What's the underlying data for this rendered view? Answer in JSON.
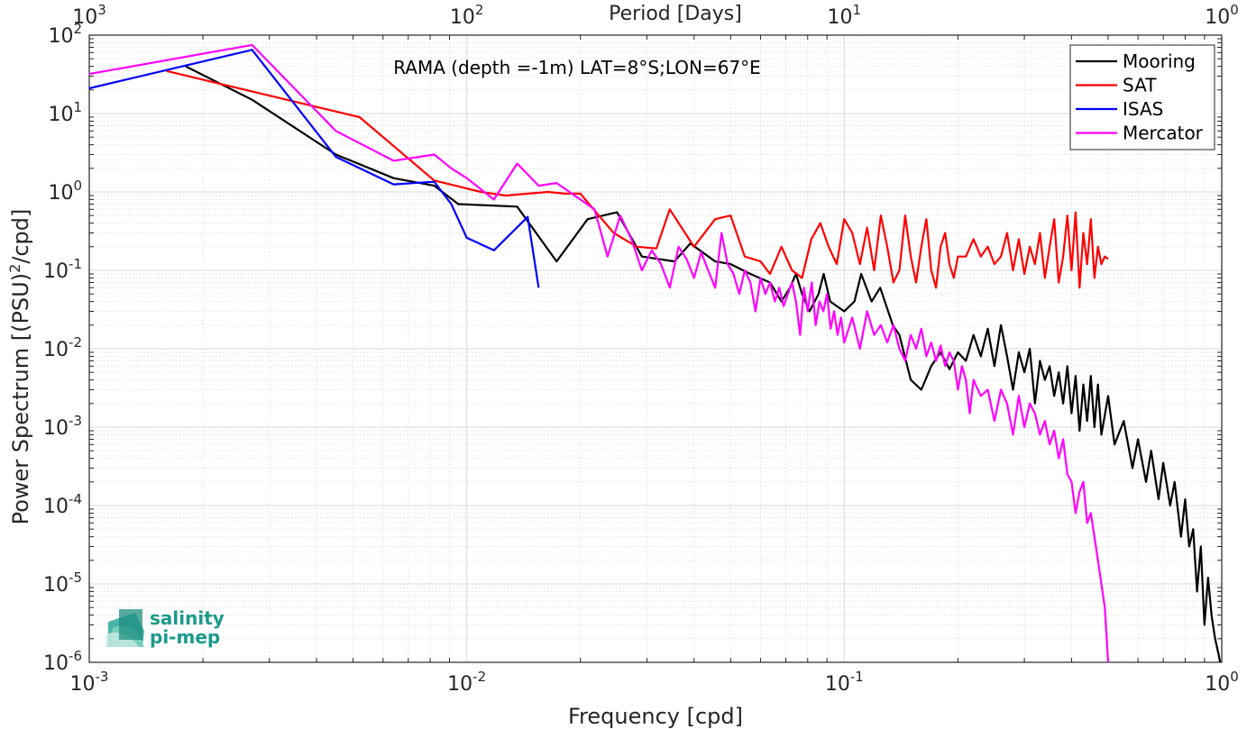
{
  "chart_data": {
    "type": "line",
    "title": "",
    "annotation": "RAMA (depth =-1m) LAT=8°S;LON=67°E",
    "xlabel": "Frequency [cpd]",
    "ylabel": "Power Spectrum [(PSU)",
    "ylabel_sup": "2",
    "ylabel_tail": "/cpd]",
    "top_xlabel": "Period [Days]",
    "xscale": "log",
    "yscale": "log",
    "xlim": [
      0.001,
      1
    ],
    "ylim": [
      1e-06,
      100
    ],
    "grid": true,
    "legend_position": "top-right",
    "x_ticks": [
      {
        "value": 0.001,
        "base": "10",
        "exp": "-3"
      },
      {
        "value": 0.01,
        "base": "10",
        "exp": "-2"
      },
      {
        "value": 0.1,
        "base": "10",
        "exp": "-1"
      },
      {
        "value": 1,
        "base": "10",
        "exp": "0"
      }
    ],
    "top_ticks": [
      {
        "value": 0.001,
        "base": "10",
        "exp": "3"
      },
      {
        "value": 0.01,
        "base": "10",
        "exp": "2"
      },
      {
        "value": 0.1,
        "base": "10",
        "exp": "1"
      },
      {
        "value": 1,
        "base": "10",
        "exp": "0"
      }
    ],
    "y_ticks": [
      {
        "value": 100,
        "base": "10",
        "exp": "2"
      },
      {
        "value": 10,
        "base": "10",
        "exp": "1"
      },
      {
        "value": 1,
        "base": "10",
        "exp": "0"
      },
      {
        "value": 0.1,
        "base": "10",
        "exp": "-1"
      },
      {
        "value": 0.01,
        "base": "10",
        "exp": "-2"
      },
      {
        "value": 0.001,
        "base": "10",
        "exp": "-3"
      },
      {
        "value": 0.0001,
        "base": "10",
        "exp": "-4"
      },
      {
        "value": 1e-05,
        "base": "10",
        "exp": "-5"
      },
      {
        "value": 1e-06,
        "base": "10",
        "exp": "-6"
      }
    ],
    "series": [
      {
        "name": "Mooring",
        "color": "#000000",
        "points": [
          [
            0.0018,
            40
          ],
          [
            0.0027,
            15
          ],
          [
            0.0045,
            3
          ],
          [
            0.0064,
            1.5
          ],
          [
            0.0082,
            1.2
          ],
          [
            0.0095,
            0.7
          ],
          [
            0.0136,
            0.65
          ],
          [
            0.0173,
            0.13
          ],
          [
            0.0209,
            0.45
          ],
          [
            0.025,
            0.55
          ],
          [
            0.0291,
            0.15
          ],
          [
            0.0355,
            0.13
          ],
          [
            0.0391,
            0.22
          ],
          [
            0.0455,
            0.13
          ],
          [
            0.05,
            0.12
          ],
          [
            0.0564,
            0.09
          ],
          [
            0.0636,
            0.07
          ],
          [
            0.0682,
            0.04
          ],
          [
            0.0718,
            0.06
          ],
          [
            0.0745,
            0.09
          ],
          [
            0.0773,
            0.05
          ],
          [
            0.0809,
            0.03
          ],
          [
            0.0855,
            0.05
          ],
          [
            0.0882,
            0.09
          ],
          [
            0.0918,
            0.04
          ],
          [
            0.1,
            0.03
          ],
          [
            0.1064,
            0.04
          ],
          [
            0.1109,
            0.09
          ],
          [
            0.1182,
            0.04
          ],
          [
            0.1245,
            0.06
          ],
          [
            0.1345,
            0.02
          ],
          [
            0.14,
            0.015
          ],
          [
            0.15,
            0.004
          ],
          [
            0.16,
            0.003
          ],
          [
            0.17,
            0.006
          ],
          [
            0.18,
            0.009
          ],
          [
            0.19,
            0.0055
          ],
          [
            0.2,
            0.009
          ],
          [
            0.21,
            0.007
          ],
          [
            0.22,
            0.015
          ],
          [
            0.23,
            0.008
          ],
          [
            0.24,
            0.018
          ],
          [
            0.25,
            0.006
          ],
          [
            0.26,
            0.02
          ],
          [
            0.27,
            0.008
          ],
          [
            0.28,
            0.003
          ],
          [
            0.29,
            0.009
          ],
          [
            0.3,
            0.005
          ],
          [
            0.31,
            0.01
          ],
          [
            0.32,
            0.002
          ],
          [
            0.33,
            0.007
          ],
          [
            0.34,
            0.004
          ],
          [
            0.35,
            0.006
          ],
          [
            0.36,
            0.0025
          ],
          [
            0.37,
            0.005
          ],
          [
            0.38,
            0.002
          ],
          [
            0.39,
            0.006
          ],
          [
            0.4,
            0.0015
          ],
          [
            0.41,
            0.0045
          ],
          [
            0.42,
            0.0009
          ],
          [
            0.43,
            0.0035
          ],
          [
            0.44,
            0.0012
          ],
          [
            0.45,
            0.0045
          ],
          [
            0.46,
            0.001
          ],
          [
            0.47,
            0.0035
          ],
          [
            0.48,
            0.0008
          ],
          [
            0.5,
            0.0025
          ],
          [
            0.52,
            0.0006
          ],
          [
            0.55,
            0.0012
          ],
          [
            0.58,
            0.0003
          ],
          [
            0.6,
            0.0007
          ],
          [
            0.63,
            0.0002
          ],
          [
            0.65,
            0.0005
          ],
          [
            0.68,
            0.00012
          ],
          [
            0.7,
            0.00035
          ],
          [
            0.73,
            0.0001
          ],
          [
            0.75,
            0.0002
          ],
          [
            0.78,
            4e-05
          ],
          [
            0.8,
            0.00012
          ],
          [
            0.82,
            3e-05
          ],
          [
            0.84,
            5e-05
          ],
          [
            0.86,
            8e-06
          ],
          [
            0.88,
            3e-05
          ],
          [
            0.9,
            3e-06
          ],
          [
            0.92,
            1.2e-05
          ],
          [
            0.94,
            4e-06
          ],
          [
            0.96,
            2e-06
          ],
          [
            0.98,
            1.3e-06
          ],
          [
            0.99,
            1e-06
          ]
        ]
      },
      {
        "name": "SAT",
        "color": "#ff0000",
        "points": [
          [
            0.0016,
            35
          ],
          [
            0.0052,
            9
          ],
          [
            0.0082,
            1.4
          ],
          [
            0.0109,
            1
          ],
          [
            0.0127,
            0.9
          ],
          [
            0.0164,
            1
          ],
          [
            0.0182,
            0.95
          ],
          [
            0.02,
            0.95
          ],
          [
            0.0245,
            0.3
          ],
          [
            0.0282,
            0.2
          ],
          [
            0.0318,
            0.19
          ],
          [
            0.0345,
            0.6
          ],
          [
            0.04,
            0.2
          ],
          [
            0.0455,
            0.45
          ],
          [
            0.05,
            0.5
          ],
          [
            0.0545,
            0.15
          ],
          [
            0.06,
            0.13
          ],
          [
            0.0636,
            0.09
          ],
          [
            0.0682,
            0.2
          ],
          [
            0.0727,
            0.1
          ],
          [
            0.0773,
            0.08
          ],
          [
            0.0818,
            0.25
          ],
          [
            0.0864,
            0.4
          ],
          [
            0.0909,
            0.2
          ],
          [
            0.0955,
            0.12
          ],
          [
            0.1,
            0.45
          ],
          [
            0.105,
            0.3
          ],
          [
            0.11,
            0.12
          ],
          [
            0.115,
            0.35
          ],
          [
            0.12,
            0.1
          ],
          [
            0.125,
            0.5
          ],
          [
            0.13,
            0.2
          ],
          [
            0.135,
            0.07
          ],
          [
            0.14,
            0.1
          ],
          [
            0.145,
            0.5
          ],
          [
            0.15,
            0.15
          ],
          [
            0.155,
            0.07
          ],
          [
            0.16,
            0.2
          ],
          [
            0.165,
            0.45
          ],
          [
            0.17,
            0.1
          ],
          [
            0.175,
            0.06
          ],
          [
            0.18,
            0.2
          ],
          [
            0.185,
            0.3
          ],
          [
            0.19,
            0.12
          ],
          [
            0.195,
            0.08
          ],
          [
            0.2,
            0.15
          ],
          [
            0.21,
            0.15
          ],
          [
            0.22,
            0.25
          ],
          [
            0.23,
            0.15
          ],
          [
            0.24,
            0.2
          ],
          [
            0.25,
            0.12
          ],
          [
            0.26,
            0.15
          ],
          [
            0.27,
            0.3
          ],
          [
            0.28,
            0.1
          ],
          [
            0.29,
            0.25
          ],
          [
            0.3,
            0.09
          ],
          [
            0.31,
            0.2
          ],
          [
            0.32,
            0.12
          ],
          [
            0.33,
            0.3
          ],
          [
            0.34,
            0.08
          ],
          [
            0.35,
            0.2
          ],
          [
            0.36,
            0.45
          ],
          [
            0.37,
            0.07
          ],
          [
            0.38,
            0.15
          ],
          [
            0.39,
            0.5
          ],
          [
            0.4,
            0.1
          ],
          [
            0.41,
            0.55
          ],
          [
            0.42,
            0.06
          ],
          [
            0.43,
            0.3
          ],
          [
            0.44,
            0.12
          ],
          [
            0.45,
            0.45
          ],
          [
            0.46,
            0.08
          ],
          [
            0.47,
            0.2
          ],
          [
            0.48,
            0.12
          ],
          [
            0.49,
            0.15
          ],
          [
            0.5,
            0.14
          ]
        ]
      },
      {
        "name": "ISAS",
        "color": "#0000ff",
        "points": [
          [
            0.001,
            21
          ],
          [
            0.0027,
            65
          ],
          [
            0.0045,
            2.8
          ],
          [
            0.0064,
            1.25
          ],
          [
            0.0082,
            1.35
          ],
          [
            0.0091,
            0.7
          ],
          [
            0.01,
            0.26
          ],
          [
            0.0118,
            0.18
          ],
          [
            0.0145,
            0.48
          ],
          [
            0.0155,
            0.06
          ]
        ]
      },
      {
        "name": "Mercator",
        "color": "#ff00ff",
        "points": [
          [
            0.001,
            32
          ],
          [
            0.0027,
            75
          ],
          [
            0.0045,
            6
          ],
          [
            0.0064,
            2.5
          ],
          [
            0.0082,
            3
          ],
          [
            0.0091,
            2
          ],
          [
            0.01,
            1.5
          ],
          [
            0.0118,
            0.8
          ],
          [
            0.0136,
            2.3
          ],
          [
            0.0155,
            1.2
          ],
          [
            0.0173,
            1.3
          ],
          [
            0.02,
            0.8
          ],
          [
            0.0218,
            0.6
          ],
          [
            0.0236,
            0.15
          ],
          [
            0.0255,
            0.5
          ],
          [
            0.0273,
            0.25
          ],
          [
            0.0291,
            0.1
          ],
          [
            0.0309,
            0.18
          ],
          [
            0.0327,
            0.12
          ],
          [
            0.0345,
            0.06
          ],
          [
            0.0364,
            0.2
          ],
          [
            0.0382,
            0.14
          ],
          [
            0.04,
            0.08
          ],
          [
            0.0418,
            0.17
          ],
          [
            0.0436,
            0.1
          ],
          [
            0.0455,
            0.06
          ],
          [
            0.0473,
            0.3
          ],
          [
            0.0491,
            0.12
          ],
          [
            0.0509,
            0.09
          ],
          [
            0.0527,
            0.05
          ],
          [
            0.0545,
            0.1
          ],
          [
            0.0564,
            0.07
          ],
          [
            0.0582,
            0.03
          ],
          [
            0.06,
            0.08
          ],
          [
            0.0618,
            0.05
          ],
          [
            0.0636,
            0.07
          ],
          [
            0.0655,
            0.04
          ],
          [
            0.0673,
            0.06
          ],
          [
            0.0691,
            0.035
          ],
          [
            0.0709,
            0.05
          ],
          [
            0.0727,
            0.07
          ],
          [
            0.0745,
            0.04
          ],
          [
            0.0764,
            0.015
          ],
          [
            0.0782,
            0.06
          ],
          [
            0.08,
            0.03
          ],
          [
            0.082,
            0.07
          ],
          [
            0.084,
            0.02
          ],
          [
            0.086,
            0.04
          ],
          [
            0.088,
            0.03
          ],
          [
            0.09,
            0.05
          ],
          [
            0.092,
            0.018
          ],
          [
            0.094,
            0.03
          ],
          [
            0.096,
            0.015
          ],
          [
            0.098,
            0.025
          ],
          [
            0.1,
            0.012
          ],
          [
            0.105,
            0.025
          ],
          [
            0.11,
            0.01
          ],
          [
            0.115,
            0.03
          ],
          [
            0.12,
            0.015
          ],
          [
            0.125,
            0.02
          ],
          [
            0.13,
            0.012
          ],
          [
            0.135,
            0.02
          ],
          [
            0.14,
            0.01
          ],
          [
            0.145,
            0.007
          ],
          [
            0.15,
            0.015
          ],
          [
            0.155,
            0.01
          ],
          [
            0.16,
            0.018
          ],
          [
            0.165,
            0.008
          ],
          [
            0.17,
            0.012
          ],
          [
            0.175,
            0.007
          ],
          [
            0.18,
            0.011
          ],
          [
            0.185,
            0.006
          ],
          [
            0.19,
            0.009
          ],
          [
            0.195,
            0.007
          ],
          [
            0.2,
            0.003
          ],
          [
            0.205,
            0.006
          ],
          [
            0.21,
            0.004
          ],
          [
            0.215,
            0.0015
          ],
          [
            0.22,
            0.004
          ],
          [
            0.23,
            0.0025
          ],
          [
            0.24,
            0.003
          ],
          [
            0.25,
            0.0012
          ],
          [
            0.26,
            0.003
          ],
          [
            0.27,
            0.002
          ],
          [
            0.28,
            0.0008
          ],
          [
            0.29,
            0.0025
          ],
          [
            0.3,
            0.001
          ],
          [
            0.31,
            0.002
          ],
          [
            0.32,
            0.0015
          ],
          [
            0.33,
            0.0008
          ],
          [
            0.34,
            0.0012
          ],
          [
            0.35,
            0.0006
          ],
          [
            0.36,
            0.0009
          ],
          [
            0.37,
            0.0004
          ],
          [
            0.38,
            0.0007
          ],
          [
            0.39,
            0.00025
          ],
          [
            0.4,
            0.0002
          ],
          [
            0.41,
            8e-05
          ],
          [
            0.42,
            0.00015
          ],
          [
            0.43,
            0.0002
          ],
          [
            0.44,
            6e-05
          ],
          [
            0.45,
            8e-05
          ],
          [
            0.46,
            4e-05
          ],
          [
            0.47,
            2e-05
          ],
          [
            0.48,
            1e-05
          ],
          [
            0.49,
            5e-06
          ],
          [
            0.5,
            1e-06
          ]
        ]
      }
    ]
  },
  "logo": {
    "line1": "salinity",
    "line2": "pi-mep",
    "color": "#1a9a8a"
  }
}
